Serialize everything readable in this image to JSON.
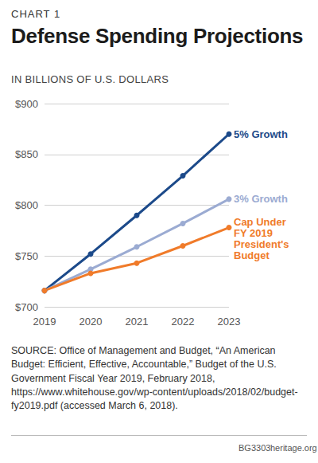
{
  "chart_data": {
    "type": "line",
    "chart_label": "CHART 1",
    "title": "Defense Spending Projections",
    "subtitle": "IN BILLIONS OF U.S. DOLLARS",
    "categories": [
      "2019",
      "2020",
      "2021",
      "2022",
      "2023"
    ],
    "series": [
      {
        "name": "5% Growth",
        "color": "#1c4a8a",
        "values": [
          716,
          752,
          790,
          829,
          870
        ]
      },
      {
        "name": "3% Growth",
        "color": "#9babd2",
        "values": [
          716,
          737,
          759,
          782,
          806
        ]
      },
      {
        "name": "Cap Under FY 2019 President's Budget",
        "color": "#f07b2a",
        "values": [
          716,
          733,
          743,
          760,
          778
        ]
      }
    ],
    "ylim": [
      700,
      900
    ],
    "yticks": [
      {
        "value": 700,
        "label": "$700"
      },
      {
        "value": 750,
        "label": "$750"
      },
      {
        "value": 800,
        "label": "$800"
      },
      {
        "value": 850,
        "label": "$850"
      },
      {
        "value": 900,
        "label": "$900"
      }
    ],
    "grid": true,
    "marker": "circle",
    "source": "SOURCE: Office of Management and Budget, “An American Budget: Efficient, Effective, Accountable,” Budget of the U.S. Government Fiscal Year 2019, February 2018, https://www.whitehouse.gov/wp-content/uploads/2018/02/budget-fy2019.pdf (accessed March 6, 2018).",
    "footer": [
      "BG3303",
      "heritage.org"
    ]
  }
}
